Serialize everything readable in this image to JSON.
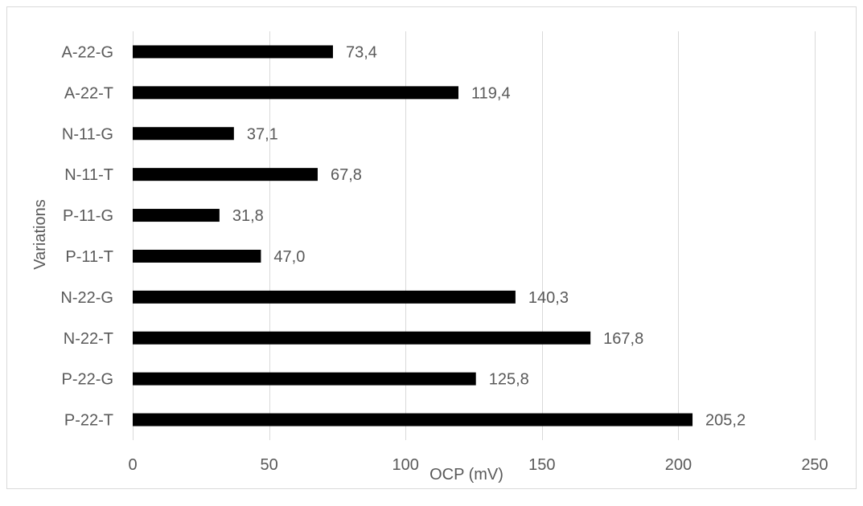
{
  "chart_data": {
    "type": "bar",
    "orientation": "horizontal",
    "title": "",
    "xlabel": "OCP (mV)",
    "ylabel": "Variations",
    "xlim": [
      0,
      250
    ],
    "x_ticks": [
      0,
      50,
      100,
      150,
      200,
      250
    ],
    "x_tick_labels": [
      "0",
      "50",
      "100",
      "150",
      "200",
      "250"
    ],
    "grid": "vertical",
    "legend": "none",
    "bar_color": "#000000",
    "gridline_color": "#d9d9d9",
    "categories": [
      "A-22-G",
      "A-22-T",
      "N-11-G",
      "N-11-T",
      "P-11-G",
      "P-11-T",
      "N-22-G",
      "N-22-T",
      "P-22-G",
      "P-22-T"
    ],
    "values": [
      73.4,
      119.4,
      37.1,
      67.8,
      31.8,
      47.0,
      140.3,
      167.8,
      125.8,
      205.2
    ],
    "data_labels": [
      "73,4",
      "119,4",
      "37,1",
      "67,8",
      "31,8",
      "47,0",
      "140,3",
      "167,8",
      "125,8",
      "205,2"
    ]
  }
}
